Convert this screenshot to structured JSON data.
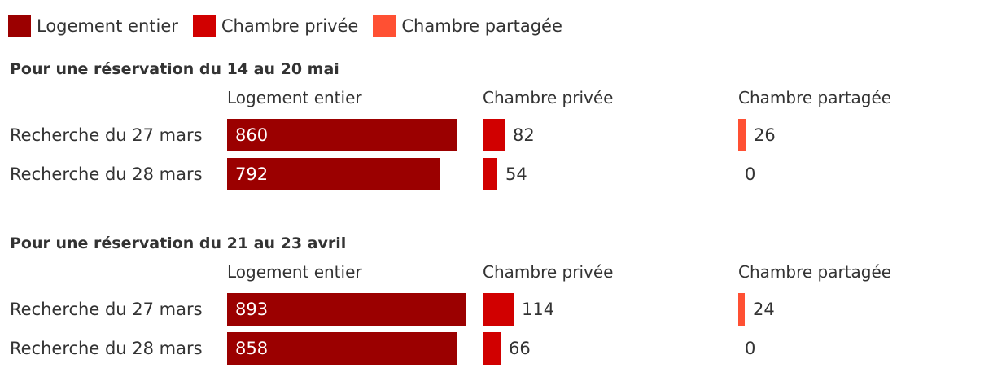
{
  "colors": {
    "logement_entier": "#9b0000",
    "chambre_privee": "#d10000",
    "chambre_partagee": "#ff5033"
  },
  "legend": [
    {
      "label": "Logement entier",
      "color": "#9b0000"
    },
    {
      "label": "Chambre privée",
      "color": "#d10000"
    },
    {
      "label": "Chambre partagée",
      "color": "#ff5033"
    }
  ],
  "chart_data": {
    "type": "bar",
    "orientation": "horizontal",
    "legend_position": "top-left",
    "columns": [
      "Logement entier",
      "Chambre privée",
      "Chambre partagée"
    ],
    "column_max": [
      893,
      893,
      893
    ],
    "groups": [
      {
        "title": "Pour une réservation du 14 au 20 mai",
        "rows": [
          {
            "label": "Recherche du 27 mars",
            "values": [
              860,
              82,
              26
            ]
          },
          {
            "label": "Recherche du 28 mars",
            "values": [
              792,
              54,
              0
            ]
          }
        ]
      },
      {
        "title": "Pour une réservation du 21 au 23 avril",
        "rows": [
          {
            "label": "Recherche du 27 mars",
            "values": [
              893,
              114,
              24
            ]
          },
          {
            "label": "Recherche du 28 mars",
            "values": [
              858,
              66,
              0
            ]
          }
        ]
      }
    ]
  }
}
